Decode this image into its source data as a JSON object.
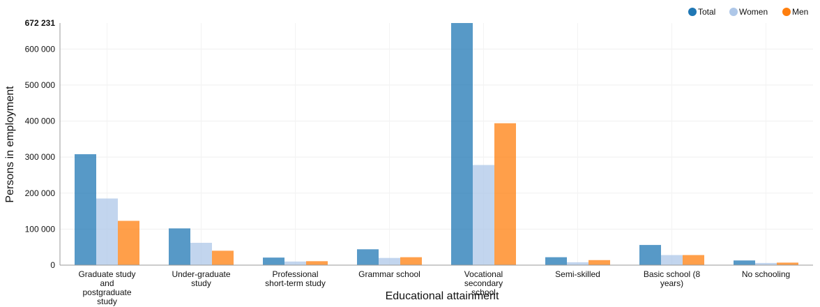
{
  "chart_data": {
    "type": "bar",
    "categories": [
      "Graduate study and postgraduate study",
      "Under-graduate study",
      "Professional short-term study",
      "Grammar school",
      "Vocational secondary school",
      "Semi-skilled",
      "Basic school (8 years)",
      "No schooling"
    ],
    "category_lines": [
      [
        "Graduate study",
        "and",
        "postgraduate",
        "study"
      ],
      [
        "Under-graduate",
        "study"
      ],
      [
        "Professional",
        "short-term study"
      ],
      [
        "Grammar school"
      ],
      [
        "Vocational",
        "secondary",
        "school"
      ],
      [
        "Semi-skilled"
      ],
      [
        "Basic school (8",
        "years)"
      ],
      [
        "No schooling"
      ]
    ],
    "series": [
      {
        "name": "Total",
        "color": "#1f77b4",
        "values": [
          308000,
          102000,
          21000,
          44000,
          672231,
          22000,
          56000,
          13000
        ]
      },
      {
        "name": "Women",
        "color": "#aec7e8",
        "values": [
          185000,
          62000,
          10000,
          20000,
          278000,
          8000,
          28000,
          6000
        ]
      },
      {
        "name": "Men",
        "color": "#ff7f0e",
        "values": [
          123000,
          40000,
          11000,
          22000,
          394000,
          14000,
          28000,
          7000
        ]
      }
    ],
    "xlabel": "Educational attainment",
    "ylabel": "Persons in employment",
    "ylim": [
      0,
      672231
    ],
    "yticks": [
      0,
      100000,
      200000,
      300000,
      400000,
      500000,
      600000
    ],
    "ytick_labels": [
      "0",
      "100 000",
      "200 000",
      "300 000",
      "400 000",
      "500 000",
      "600 000"
    ],
    "ymax_label": "672 231",
    "grid": true,
    "legend_position": "top-right"
  }
}
